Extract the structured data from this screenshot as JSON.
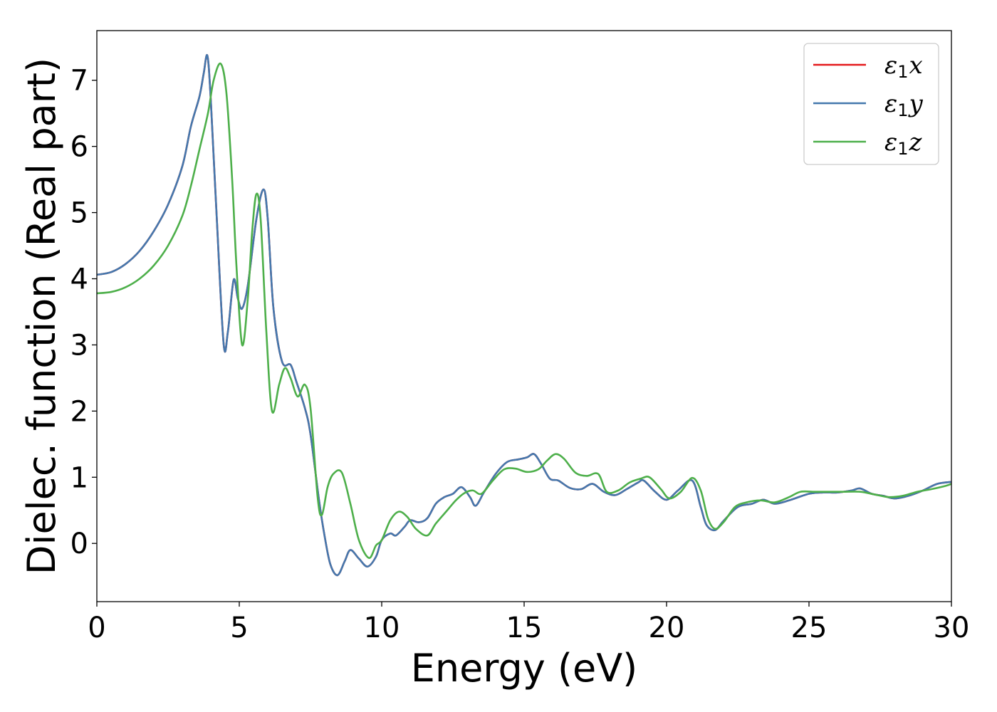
{
  "chart_data": {
    "type": "line",
    "title": "",
    "xlabel": "Energy (eV)",
    "ylabel": "Dielec. function (Real part)",
    "xlim": [
      0,
      30
    ],
    "ylim": [
      -0.88,
      7.75
    ],
    "xticks": [
      0,
      5,
      10,
      15,
      20,
      25,
      30
    ],
    "yticks": [
      0,
      1,
      2,
      3,
      4,
      5,
      6,
      7
    ],
    "grid": false,
    "legend_position": "top-right",
    "series": [
      {
        "name": "ε1x",
        "greek": "ε",
        "sub": "1",
        "axis": "x",
        "color": "#e41a1c",
        "x": [
          0,
          0.5,
          1,
          1.5,
          2,
          2.5,
          3,
          3.3,
          3.6,
          3.75,
          3.88,
          4,
          4.2,
          4.45,
          4.6,
          4.8,
          4.95,
          5.1,
          5.3,
          5.6,
          5.85,
          6,
          6.2,
          6.5,
          6.8,
          7,
          7.3,
          7.5,
          7.8,
          8,
          8.2,
          8.45,
          8.7,
          8.9,
          9.2,
          9.5,
          9.8,
          10,
          10.3,
          10.5,
          10.8,
          11,
          11.3,
          11.6,
          11.9,
          12.2,
          12.5,
          12.8,
          13.1,
          13.3,
          13.6,
          14,
          14.4,
          14.8,
          15.1,
          15.35,
          15.6,
          15.9,
          16.2,
          16.6,
          17,
          17.4,
          17.8,
          18.2,
          18.6,
          19,
          19.2,
          19.6,
          20,
          20.4,
          20.9,
          21.2,
          21.4,
          21.7,
          22,
          22.5,
          23,
          23.4,
          23.8,
          24.3,
          25,
          25.5,
          26,
          26.5,
          26.8,
          27.2,
          27.6,
          28,
          28.5,
          29,
          29.5,
          30
        ],
        "y": [
          4.06,
          4.1,
          4.22,
          4.42,
          4.72,
          5.12,
          5.7,
          6.3,
          6.75,
          7.1,
          7.37,
          6.7,
          5.0,
          3.02,
          3.2,
          3.98,
          3.7,
          3.55,
          3.9,
          4.9,
          5.35,
          4.9,
          3.55,
          2.75,
          2.7,
          2.45,
          2.05,
          1.65,
          0.65,
          0.1,
          -0.32,
          -0.48,
          -0.27,
          -0.1,
          -0.23,
          -0.35,
          -0.2,
          0.05,
          0.15,
          0.12,
          0.25,
          0.35,
          0.32,
          0.38,
          0.6,
          0.7,
          0.75,
          0.85,
          0.7,
          0.57,
          0.78,
          1.05,
          1.23,
          1.27,
          1.3,
          1.35,
          1.2,
          0.98,
          0.95,
          0.84,
          0.82,
          0.9,
          0.78,
          0.73,
          0.82,
          0.92,
          0.95,
          0.78,
          0.66,
          0.8,
          0.95,
          0.55,
          0.28,
          0.2,
          0.34,
          0.55,
          0.6,
          0.66,
          0.6,
          0.65,
          0.75,
          0.77,
          0.77,
          0.8,
          0.83,
          0.75,
          0.72,
          0.68,
          0.72,
          0.8,
          0.9,
          0.93
        ]
      },
      {
        "name": "ε1y",
        "greek": "ε",
        "sub": "1",
        "axis": "y",
        "color": "#4478ad",
        "x": [
          0,
          0.5,
          1,
          1.5,
          2,
          2.5,
          3,
          3.3,
          3.6,
          3.75,
          3.88,
          4,
          4.2,
          4.45,
          4.6,
          4.8,
          4.95,
          5.1,
          5.3,
          5.6,
          5.85,
          6,
          6.2,
          6.5,
          6.8,
          7,
          7.3,
          7.5,
          7.8,
          8,
          8.2,
          8.45,
          8.7,
          8.9,
          9.2,
          9.5,
          9.8,
          10,
          10.3,
          10.5,
          10.8,
          11,
          11.3,
          11.6,
          11.9,
          12.2,
          12.5,
          12.8,
          13.1,
          13.3,
          13.6,
          14,
          14.4,
          14.8,
          15.1,
          15.35,
          15.6,
          15.9,
          16.2,
          16.6,
          17,
          17.4,
          17.8,
          18.2,
          18.6,
          19,
          19.2,
          19.6,
          20,
          20.4,
          20.9,
          21.2,
          21.4,
          21.7,
          22,
          22.5,
          23,
          23.4,
          23.8,
          24.3,
          25,
          25.5,
          26,
          26.5,
          26.8,
          27.2,
          27.6,
          28,
          28.5,
          29,
          29.5,
          30
        ],
        "y": [
          4.06,
          4.1,
          4.22,
          4.42,
          4.72,
          5.12,
          5.7,
          6.3,
          6.75,
          7.1,
          7.37,
          6.7,
          5.0,
          3.02,
          3.2,
          3.98,
          3.7,
          3.55,
          3.9,
          4.9,
          5.35,
          4.9,
          3.55,
          2.75,
          2.7,
          2.45,
          2.05,
          1.65,
          0.65,
          0.1,
          -0.32,
          -0.48,
          -0.27,
          -0.1,
          -0.23,
          -0.35,
          -0.2,
          0.05,
          0.15,
          0.12,
          0.25,
          0.35,
          0.32,
          0.38,
          0.6,
          0.7,
          0.75,
          0.85,
          0.7,
          0.57,
          0.78,
          1.05,
          1.23,
          1.27,
          1.3,
          1.35,
          1.2,
          0.98,
          0.95,
          0.84,
          0.82,
          0.9,
          0.78,
          0.73,
          0.82,
          0.92,
          0.95,
          0.78,
          0.66,
          0.8,
          0.95,
          0.55,
          0.28,
          0.2,
          0.34,
          0.55,
          0.6,
          0.66,
          0.6,
          0.65,
          0.75,
          0.77,
          0.77,
          0.8,
          0.83,
          0.75,
          0.72,
          0.68,
          0.72,
          0.8,
          0.9,
          0.93
        ]
      },
      {
        "name": "ε1z",
        "greek": "ε",
        "sub": "1",
        "axis": "z",
        "color": "#4daf4a",
        "x": [
          0,
          0.5,
          1,
          1.5,
          2,
          2.5,
          3,
          3.3,
          3.6,
          3.9,
          4.1,
          4.35,
          4.55,
          4.75,
          4.9,
          5.1,
          5.3,
          5.45,
          5.6,
          5.75,
          5.95,
          6.15,
          6.4,
          6.6,
          6.8,
          7.05,
          7.3,
          7.5,
          7.75,
          7.9,
          8.1,
          8.3,
          8.6,
          8.9,
          9.2,
          9.55,
          9.8,
          10,
          10.3,
          10.6,
          10.9,
          11.2,
          11.6,
          11.9,
          12.3,
          12.6,
          12.9,
          13.2,
          13.5,
          13.9,
          14.3,
          14.7,
          15.1,
          15.5,
          15.8,
          16.1,
          16.4,
          16.8,
          17.2,
          17.6,
          17.9,
          18.3,
          18.7,
          19.1,
          19.4,
          19.8,
          20.1,
          20.5,
          20.9,
          21.2,
          21.45,
          21.7,
          22,
          22.4,
          22.8,
          23.3,
          23.8,
          24.3,
          24.7,
          25.2,
          25.7,
          26.2,
          26.8,
          27.3,
          27.8,
          28.3,
          28.8,
          29.3,
          29.8,
          30
        ],
        "y": [
          3.78,
          3.8,
          3.87,
          4.0,
          4.2,
          4.5,
          4.95,
          5.4,
          5.95,
          6.5,
          7.0,
          7.25,
          6.8,
          5.5,
          4.2,
          3.0,
          3.7,
          4.7,
          5.28,
          4.9,
          3.2,
          2.0,
          2.4,
          2.65,
          2.5,
          2.22,
          2.4,
          2.05,
          0.7,
          0.43,
          0.85,
          1.05,
          1.07,
          0.6,
          0.05,
          -0.22,
          -0.03,
          0.05,
          0.35,
          0.48,
          0.4,
          0.22,
          0.12,
          0.3,
          0.5,
          0.65,
          0.76,
          0.8,
          0.75,
          0.95,
          1.12,
          1.13,
          1.08,
          1.12,
          1.25,
          1.35,
          1.28,
          1.07,
          1.02,
          1.05,
          0.78,
          0.8,
          0.92,
          0.98,
          1.0,
          0.82,
          0.68,
          0.78,
          0.99,
          0.8,
          0.38,
          0.22,
          0.32,
          0.55,
          0.62,
          0.65,
          0.62,
          0.7,
          0.78,
          0.78,
          0.78,
          0.78,
          0.78,
          0.74,
          0.7,
          0.72,
          0.78,
          0.82,
          0.87,
          0.9
        ]
      }
    ]
  }
}
